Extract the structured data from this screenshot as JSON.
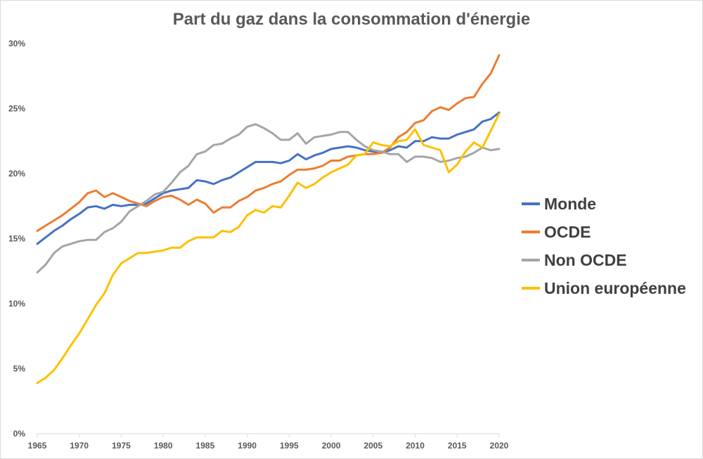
{
  "chart_data": {
    "type": "line",
    "title": "Part du gaz dans la consommation d'énergie",
    "xlabel": "",
    "ylabel": "",
    "xlim": [
      1965,
      2020
    ],
    "ylim": [
      0,
      30
    ],
    "y_ticks": [
      "0%",
      "5%",
      "10%",
      "15%",
      "20%",
      "25%",
      "30%"
    ],
    "x_ticks": [
      "1965",
      "1970",
      "1975",
      "1980",
      "1985",
      "1990",
      "1995",
      "2000",
      "2005",
      "2010",
      "2015",
      "2020"
    ],
    "grid": false,
    "legend_position": "right",
    "x": [
      1965,
      1966,
      1967,
      1968,
      1969,
      1970,
      1971,
      1972,
      1973,
      1974,
      1975,
      1976,
      1977,
      1978,
      1979,
      1980,
      1981,
      1982,
      1983,
      1984,
      1985,
      1986,
      1987,
      1988,
      1989,
      1990,
      1991,
      1992,
      1993,
      1994,
      1995,
      1996,
      1997,
      1998,
      1999,
      2000,
      2001,
      2002,
      2003,
      2004,
      2005,
      2006,
      2007,
      2008,
      2009,
      2010,
      2011,
      2012,
      2013,
      2014,
      2015,
      2016,
      2017,
      2018,
      2019,
      2020
    ],
    "series": [
      {
        "name": "Monde",
        "color": "#4472c4",
        "values": [
          14.6,
          15.1,
          15.6,
          16.0,
          16.5,
          16.9,
          17.4,
          17.5,
          17.3,
          17.6,
          17.5,
          17.6,
          17.6,
          17.7,
          18.1,
          18.5,
          18.7,
          18.8,
          18.9,
          19.5,
          19.4,
          19.2,
          19.5,
          19.7,
          20.1,
          20.5,
          20.9,
          20.9,
          20.9,
          20.8,
          21.0,
          21.5,
          21.1,
          21.4,
          21.6,
          21.9,
          22.0,
          22.1,
          22.0,
          21.8,
          21.7,
          21.6,
          21.8,
          22.1,
          22.0,
          22.5,
          22.5,
          22.8,
          22.7,
          22.7,
          23.0,
          23.2,
          23.4,
          24.0,
          24.2,
          24.7
        ]
      },
      {
        "name": "OCDE",
        "color": "#ed7d31",
        "values": [
          15.6,
          16.0,
          16.4,
          16.8,
          17.3,
          17.8,
          18.5,
          18.7,
          18.2,
          18.5,
          18.2,
          17.9,
          17.7,
          17.5,
          17.9,
          18.2,
          18.3,
          18.0,
          17.6,
          18.0,
          17.7,
          17.0,
          17.4,
          17.4,
          17.9,
          18.2,
          18.7,
          18.9,
          19.2,
          19.4,
          19.9,
          20.3,
          20.3,
          20.4,
          20.6,
          21.0,
          21.0,
          21.3,
          21.4,
          21.5,
          21.5,
          21.6,
          22.0,
          22.8,
          23.2,
          23.9,
          24.1,
          24.8,
          25.1,
          24.9,
          25.4,
          25.8,
          25.9,
          26.9,
          27.7,
          29.1
        ]
      },
      {
        "name": "Non OCDE",
        "color": "#a5a5a5",
        "values": [
          12.4,
          13.0,
          13.9,
          14.4,
          14.6,
          14.8,
          14.9,
          14.9,
          15.5,
          15.8,
          16.3,
          17.1,
          17.5,
          17.9,
          18.4,
          18.6,
          19.3,
          20.1,
          20.6,
          21.5,
          21.7,
          22.2,
          22.3,
          22.7,
          23.0,
          23.6,
          23.8,
          23.5,
          23.1,
          22.6,
          22.6,
          23.1,
          22.3,
          22.8,
          22.9,
          23.0,
          23.2,
          23.2,
          22.6,
          22.1,
          21.8,
          21.7,
          21.5,
          21.5,
          20.9,
          21.3,
          21.3,
          21.2,
          20.9,
          21.0,
          21.2,
          21.3,
          21.6,
          22.0,
          21.8,
          21.9
        ]
      },
      {
        "name": "Union européenne",
        "color": "#ffc000",
        "values": [
          3.9,
          4.3,
          4.9,
          5.8,
          6.8,
          7.7,
          8.8,
          9.9,
          10.8,
          12.2,
          13.1,
          13.5,
          13.9,
          13.9,
          14.0,
          14.1,
          14.3,
          14.3,
          14.8,
          15.1,
          15.1,
          15.1,
          15.6,
          15.5,
          15.9,
          16.8,
          17.2,
          17.0,
          17.5,
          17.4,
          18.3,
          19.3,
          18.9,
          19.2,
          19.7,
          20.1,
          20.4,
          20.7,
          21.4,
          21.5,
          22.4,
          22.2,
          22.1,
          22.5,
          22.6,
          23.4,
          22.2,
          22.0,
          21.8,
          20.1,
          20.7,
          21.7,
          22.4,
          22.0,
          23.3,
          24.6
        ]
      }
    ]
  }
}
